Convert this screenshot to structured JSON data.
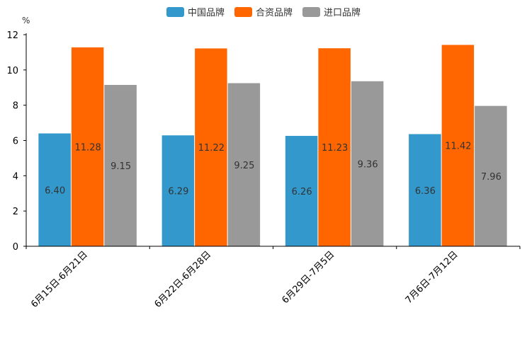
{
  "chart_data": {
    "type": "bar",
    "title": "",
    "ylabel": "%",
    "xlabel": "",
    "ylim": [
      0,
      12
    ],
    "yticks": [
      0,
      2,
      4,
      6,
      8,
      10,
      12
    ],
    "categories": [
      "6月15日-6月21日",
      "6月22日-6月28日",
      "6月29日-7月5日",
      "7月6日-7月12日"
    ],
    "series": [
      {
        "name": "中国品牌",
        "color": "#3398cc",
        "values": [
          6.4,
          6.29,
          6.26,
          6.36
        ],
        "labels": [
          "6.40",
          "6.29",
          "6.26",
          "6.36"
        ]
      },
      {
        "name": "合资品牌",
        "color": "#ff6600",
        "values": [
          11.28,
          11.22,
          11.23,
          11.42
        ],
        "labels": [
          "11.28",
          "11.22",
          "11.23",
          "11.42"
        ]
      },
      {
        "name": "进口品牌",
        "color": "#999999",
        "values": [
          9.15,
          9.25,
          9.36,
          7.96
        ],
        "labels": [
          "9.15",
          "9.25",
          "9.36",
          "7.96"
        ]
      }
    ],
    "legend_position": "top-center",
    "grid": false
  }
}
